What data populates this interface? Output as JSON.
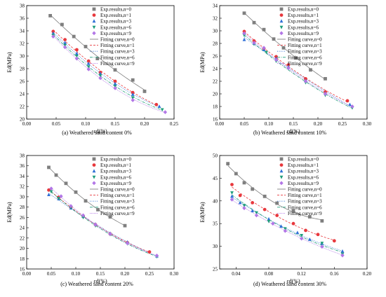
{
  "figure": {
    "legend_labels": [
      "Exp.results,n=0",
      "Exp.results,n=1",
      "Exp.results,n=3",
      "Exp.results,n=6",
      "Exp.results,n=9",
      "Fitting curve,n=0",
      "Fitting curve,n=1",
      "Fitting curve,n=3",
      "Fitting curve,n=6",
      "Fitting curve,n=9"
    ],
    "series_colors": {
      "n0": "#7f7f7f",
      "n1": "#e8383d",
      "n3": "#2f6fd6",
      "n6": "#1f9e7a",
      "n9": "#b276e6"
    },
    "markers": {
      "n0": "square",
      "n1": "circle",
      "n3": "triangle-up",
      "n6": "triangle-down",
      "n9": "diamond"
    }
  },
  "chart_data": [
    {
      "type": "scatter",
      "caption": "(a) Weathered sand content 0%",
      "xlabel": "εd(%)",
      "ylabel": "Ed(MPa)",
      "xlim": [
        0.0,
        0.25
      ],
      "ylim": [
        20,
        38
      ],
      "xticks": [
        "0.00",
        "0.05",
        "0.10",
        "0.15",
        "0.20",
        "0.25"
      ],
      "yticks": [
        "20",
        "22",
        "24",
        "26",
        "28",
        "30",
        "32",
        "34",
        "36",
        "38"
      ],
      "series": [
        {
          "key": "n0",
          "points": [
            [
              0.04,
              36.4
            ],
            [
              0.06,
              35.0
            ],
            [
              0.08,
              33.1
            ],
            [
              0.1,
              31.5
            ],
            [
              0.12,
              29.6
            ],
            [
              0.15,
              27.8
            ],
            [
              0.18,
              26.2
            ],
            [
              0.2,
              24.4
            ]
          ]
        },
        {
          "key": "n1",
          "points": [
            [
              0.045,
              33.9
            ],
            [
              0.065,
              32.6
            ],
            [
              0.085,
              31.0
            ],
            [
              0.105,
              29.2
            ],
            [
              0.125,
              27.4
            ],
            [
              0.15,
              26.0
            ],
            [
              0.18,
              24.2
            ],
            [
              0.22,
              22.3
            ]
          ]
        },
        {
          "key": "n3",
          "points": [
            [
              0.045,
              33.6
            ],
            [
              0.065,
              32.1
            ],
            [
              0.085,
              30.4
            ],
            [
              0.105,
              28.8
            ],
            [
              0.125,
              27.2
            ],
            [
              0.15,
              25.6
            ],
            [
              0.18,
              23.9
            ],
            [
              0.225,
              22.0
            ]
          ]
        },
        {
          "key": "n6",
          "points": [
            [
              0.045,
              33.3
            ],
            [
              0.065,
              31.7
            ],
            [
              0.085,
              30.0
            ],
            [
              0.105,
              28.3
            ],
            [
              0.125,
              26.9
            ],
            [
              0.15,
              25.2
            ],
            [
              0.18,
              23.4
            ],
            [
              0.23,
              21.5
            ]
          ]
        },
        {
          "key": "n9",
          "points": [
            [
              0.045,
              33.1
            ],
            [
              0.065,
              31.4
            ],
            [
              0.085,
              29.6
            ],
            [
              0.105,
              27.9
            ],
            [
              0.125,
              26.5
            ],
            [
              0.15,
              24.9
            ],
            [
              0.18,
              23.0
            ],
            [
              0.235,
              21.1
            ]
          ]
        }
      ]
    },
    {
      "type": "scatter",
      "caption": "(b) Weathered sand content 10%",
      "xlabel": "εd(%)",
      "ylabel": "Ed(MPa)",
      "xlim": [
        0.0,
        0.3
      ],
      "ylim": [
        16,
        34
      ],
      "xticks": [
        "0.00",
        "0.05",
        "0.10",
        "0.15",
        "0.20",
        "0.25",
        "0.30"
      ],
      "yticks": [
        "16",
        "18",
        "20",
        "22",
        "24",
        "26",
        "28",
        "30",
        "32",
        "34"
      ],
      "series": [
        {
          "key": "n0",
          "points": [
            [
              0.05,
              32.8
            ],
            [
              0.07,
              31.3
            ],
            [
              0.09,
              30.2
            ],
            [
              0.11,
              28.7
            ],
            [
              0.13,
              27.3
            ],
            [
              0.155,
              25.7
            ],
            [
              0.185,
              23.8
            ],
            [
              0.215,
              22.4
            ]
          ]
        },
        {
          "key": "n1",
          "points": [
            [
              0.05,
              29.9
            ],
            [
              0.07,
              28.4
            ],
            [
              0.09,
              27.2
            ],
            [
              0.115,
              25.9
            ],
            [
              0.14,
              24.6
            ],
            [
              0.175,
              22.4
            ],
            [
              0.215,
              20.3
            ],
            [
              0.26,
              18.9
            ]
          ]
        },
        {
          "key": "n3",
          "points": [
            [
              0.05,
              28.6
            ],
            [
              0.07,
              28.0
            ],
            [
              0.09,
              27.0
            ],
            [
              0.115,
              25.6
            ],
            [
              0.14,
              24.3
            ],
            [
              0.175,
              22.1
            ],
            [
              0.215,
              20.1
            ],
            [
              0.265,
              18.3
            ]
          ]
        },
        {
          "key": "n6",
          "points": [
            [
              0.05,
              29.3
            ],
            [
              0.07,
              27.9
            ],
            [
              0.095,
              26.6
            ],
            [
              0.115,
              25.2
            ],
            [
              0.14,
              24.0
            ],
            [
              0.175,
              21.8
            ],
            [
              0.215,
              19.8
            ],
            [
              0.27,
              17.8
            ]
          ]
        },
        {
          "key": "n9",
          "points": [
            [
              0.05,
              29.6
            ],
            [
              0.07,
              28.1
            ],
            [
              0.09,
              27.3
            ],
            [
              0.115,
              25.4
            ],
            [
              0.14,
              24.1
            ],
            [
              0.175,
              22.0
            ],
            [
              0.215,
              20.0
            ],
            [
              0.27,
              18.0
            ]
          ]
        }
      ]
    },
    {
      "type": "scatter",
      "caption": "(c) Weathered sand content 20%",
      "xlabel": "εd(%)",
      "ylabel": "Ed(MPa)",
      "xlim": [
        0.0,
        0.3
      ],
      "ylim": [
        16,
        38
      ],
      "xticks": [
        "0.00",
        "0.05",
        "0.10",
        "0.15",
        "0.20",
        "0.25",
        "0.30"
      ],
      "yticks": [
        "16",
        "18",
        "20",
        "22",
        "24",
        "26",
        "28",
        "30",
        "32",
        "34",
        "36",
        "38"
      ],
      "series": [
        {
          "key": "n0",
          "points": [
            [
              0.045,
              35.7
            ],
            [
              0.06,
              34.2
            ],
            [
              0.08,
              32.6
            ],
            [
              0.1,
              30.9
            ],
            [
              0.12,
              29.2
            ],
            [
              0.145,
              27.5
            ],
            [
              0.17,
              26.1
            ],
            [
              0.2,
              24.4
            ]
          ]
        },
        {
          "key": "n1",
          "points": [
            [
              0.045,
              31.3
            ],
            [
              0.065,
              29.9
            ],
            [
              0.09,
              28.0
            ],
            [
              0.115,
              26.3
            ],
            [
              0.14,
              24.6
            ],
            [
              0.17,
              22.8
            ],
            [
              0.205,
              21.1
            ],
            [
              0.25,
              19.3
            ]
          ]
        },
        {
          "key": "n3",
          "points": [
            [
              0.045,
              30.4
            ],
            [
              0.065,
              29.6
            ],
            [
              0.09,
              27.8
            ],
            [
              0.115,
              26.2
            ],
            [
              0.14,
              24.7
            ],
            [
              0.17,
              22.9
            ],
            [
              0.205,
              21.2
            ],
            [
              0.265,
              18.5
            ]
          ]
        },
        {
          "key": "n6",
          "points": [
            [
              0.05,
              31.0
            ],
            [
              0.065,
              29.7
            ],
            [
              0.09,
              27.9
            ],
            [
              0.115,
              26.0
            ],
            [
              0.14,
              24.4
            ],
            [
              0.17,
              22.7
            ],
            [
              0.205,
              20.9
            ],
            [
              0.265,
              18.4
            ]
          ]
        },
        {
          "key": "n9",
          "points": [
            [
              0.05,
              31.6
            ],
            [
              0.07,
              30.1
            ],
            [
              0.09,
              28.2
            ],
            [
              0.115,
              26.4
            ],
            [
              0.14,
              24.6
            ],
            [
              0.17,
              22.8
            ],
            [
              0.205,
              21.0
            ],
            [
              0.265,
              18.6
            ]
          ]
        }
      ]
    },
    {
      "type": "scatter",
      "caption": "(d) Weathered sand content 30%",
      "xlabel": "εd(%)",
      "ylabel": "Ed(MPa)",
      "xlim": [
        0.02,
        0.2
      ],
      "ylim": [
        25,
        50
      ],
      "xticks": [
        "0.04",
        "0.08",
        "0.12",
        "0.16",
        "0.20"
      ],
      "yticks": [
        "25",
        "30",
        "35",
        "40",
        "45",
        "50"
      ],
      "series": [
        {
          "key": "n0",
          "points": [
            [
              0.03,
              48.2
            ],
            [
              0.04,
              46.0
            ],
            [
              0.05,
              44.0
            ],
            [
              0.06,
              42.6
            ],
            [
              0.075,
              41.0
            ],
            [
              0.09,
              39.5
            ],
            [
              0.11,
              37.8
            ],
            [
              0.13,
              36.5
            ],
            [
              0.145,
              35.6
            ]
          ]
        },
        {
          "key": "n1",
          "points": [
            [
              0.035,
              43.6
            ],
            [
              0.045,
              41.2
            ],
            [
              0.06,
              39.6
            ],
            [
              0.075,
              38.1
            ],
            [
              0.09,
              36.8
            ],
            [
              0.11,
              35.0
            ],
            [
              0.125,
              33.5
            ],
            [
              0.14,
              32.6
            ],
            [
              0.16,
              31.2
            ]
          ]
        },
        {
          "key": "n3",
          "points": [
            [
              0.035,
              41.0
            ],
            [
              0.045,
              39.6
            ],
            [
              0.06,
              37.8
            ],
            [
              0.08,
              36.0
            ],
            [
              0.095,
              34.4
            ],
            [
              0.115,
              33.0
            ],
            [
              0.13,
              31.5
            ],
            [
              0.145,
              30.6
            ],
            [
              0.17,
              28.9
            ]
          ]
        },
        {
          "key": "n6",
          "points": [
            [
              0.035,
              41.8
            ],
            [
              0.05,
              39.0
            ],
            [
              0.065,
              37.4
            ],
            [
              0.08,
              35.5
            ],
            [
              0.1,
              33.9
            ],
            [
              0.12,
              32.4
            ],
            [
              0.145,
              30.7
            ],
            [
              0.17,
              28.3
            ]
          ]
        },
        {
          "key": "n9",
          "points": [
            [
              0.035,
              40.3
            ],
            [
              0.05,
              38.4
            ],
            [
              0.065,
              36.8
            ],
            [
              0.085,
              35.0
            ],
            [
              0.1,
              33.4
            ],
            [
              0.12,
              31.7
            ],
            [
              0.145,
              29.9
            ],
            [
              0.17,
              28.0
            ]
          ]
        }
      ]
    }
  ]
}
